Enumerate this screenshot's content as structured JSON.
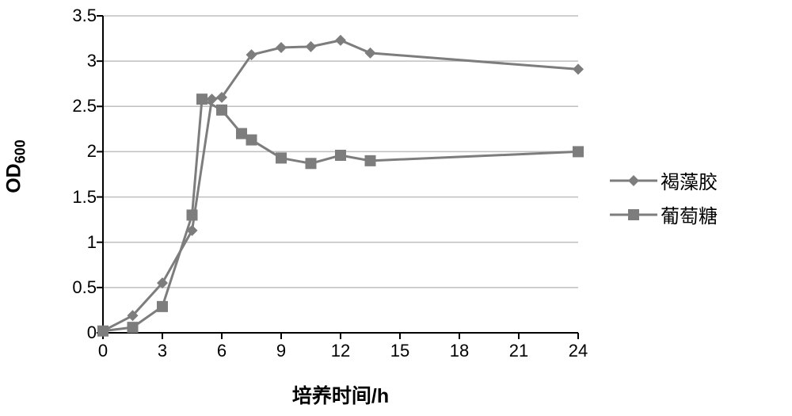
{
  "chart": {
    "type": "line",
    "background_color": "#ffffff",
    "plot_border_color": "#000000",
    "plot_border_width": 2,
    "line_width": 3,
    "marker_size": 14,
    "x_axis": {
      "title": "培养时间/h",
      "lim": [
        0,
        24
      ],
      "ticks": [
        0,
        3,
        6,
        9,
        12,
        15,
        18,
        21,
        24
      ],
      "tick_fontsize": 22,
      "title_fontsize": 25,
      "title_fontweight": "bold",
      "color": "#000000",
      "tick_mark_length": 8
    },
    "y_axis": {
      "title_main": "OD",
      "title_sub": "600",
      "lim": [
        0,
        3.5
      ],
      "ticks": [
        0,
        0.5,
        1,
        1.5,
        2,
        2.5,
        3,
        3.5
      ],
      "tick_labels": [
        "0",
        "0.5",
        "1",
        "1.5",
        "2",
        "2.5",
        "3",
        "3.5"
      ],
      "tick_fontsize": 22,
      "title_fontsize": 25,
      "title_fontweight": "bold",
      "color": "#000000",
      "tick_mark_length": 8
    },
    "grid": {
      "x": false,
      "y": true,
      "color": "#bfbfbf",
      "width": 1.5
    },
    "series": [
      {
        "name": "褐藻胶",
        "marker": "diamond",
        "color": "#7d7d7d",
        "line_color": "#7d7d7d",
        "x": [
          0,
          1.5,
          3,
          4.5,
          5.5,
          6,
          7.5,
          9,
          10.5,
          12,
          13.5,
          24
        ],
        "y": [
          0.02,
          0.19,
          0.55,
          1.13,
          2.58,
          2.6,
          3.07,
          3.15,
          3.16,
          3.23,
          3.09,
          2.91
        ]
      },
      {
        "name": "葡萄糖",
        "marker": "square",
        "color": "#7d7d7d",
        "line_color": "#7d7d7d",
        "x": [
          0,
          1.5,
          3,
          4.5,
          5,
          6,
          7,
          7.5,
          9,
          10.5,
          12,
          13.5,
          24
        ],
        "y": [
          0.02,
          0.06,
          0.29,
          1.3,
          2.58,
          2.46,
          2.2,
          2.13,
          1.93,
          1.87,
          1.96,
          1.9,
          2.0
        ]
      }
    ],
    "legend": {
      "position": "right-middle",
      "fontsize": 24,
      "item_gap": 8,
      "line_length": 60
    }
  }
}
